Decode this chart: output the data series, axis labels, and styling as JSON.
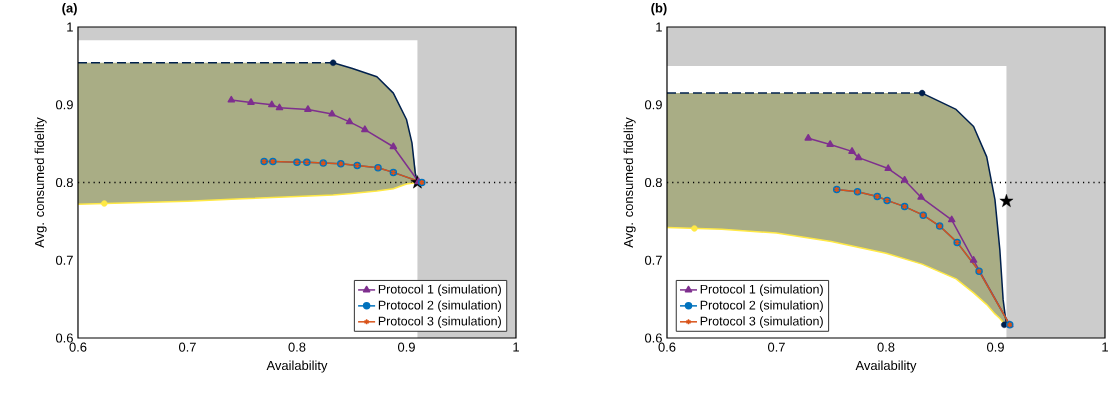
{
  "chart_data": [
    {
      "type": "line",
      "title": "(a)",
      "xlabel": "Availability",
      "ylabel": "Avg. consumed fidelity",
      "xlim": [
        0.6,
        1
      ],
      "ylim": [
        0.6,
        1
      ],
      "xticks": [
        0.6,
        0.7,
        0.8,
        0.9,
        1
      ],
      "yticks": [
        0.6,
        0.7,
        0.8,
        0.9,
        1
      ],
      "grid": false,
      "legend": "bottom right",
      "ref_lines": [
        {
          "axis": "y",
          "value": 0.8,
          "color": "#000000",
          "line_style": "dotted"
        }
      ],
      "bands": [
        {
          "axis": "x",
          "from": 0.91,
          "to": 1,
          "color": "#cccccc"
        },
        {
          "axis": "y",
          "from": 0.983,
          "to": 1,
          "color": "#cccccc"
        }
      ],
      "series": [
        {
          "color": "#ffe945",
          "marker": "none",
          "x": [
            0.6,
            0.65,
            0.7,
            0.75,
            0.8,
            0.833,
            0.85,
            0.873,
            0.888,
            0.9,
            0.905,
            0.91
          ],
          "values": [
            0.772,
            0.774,
            0.776,
            0.779,
            0.782,
            0.784,
            0.786,
            0.789,
            0.792,
            0.798,
            0.799,
            0.8
          ],
          "lower": [
            0.772,
            0.774,
            0.776,
            0.779,
            0.782,
            0.784,
            0.786,
            0.789,
            0.792,
            0.798,
            0.799,
            0.8
          ],
          "upper": [
            0.954,
            0.954,
            0.954,
            0.954,
            0.954,
            0.954,
            0.947,
            0.936,
            0.915,
            0.881,
            0.851,
            0.8
          ]
        },
        {
          "color": "#00204d",
          "line_style": "dashed",
          "marker": "none",
          "x": [
            0.6,
            0.833
          ],
          "values": [
            0.954,
            0.954
          ]
        },
        {
          "color": "#00204d",
          "marker": "none",
          "x": [
            0.833,
            0.85,
            0.873,
            0.888,
            0.9,
            0.905,
            0.908,
            0.91
          ],
          "values": [
            0.954,
            0.947,
            0.936,
            0.915,
            0.881,
            0.851,
            0.812,
            0.8
          ]
        },
        {
          "type": "scatter",
          "color": "#00204d",
          "marker": "circle",
          "x": [
            0.833
          ],
          "values": [
            0.954
          ]
        },
        {
          "type": "scatter",
          "color": "#ffe945",
          "marker": "circle",
          "x": [
            0.624
          ],
          "values": [
            0.773
          ]
        },
        {
          "type": "scatter",
          "color": "#000000",
          "marker": "star",
          "x": [
            0.91
          ],
          "values": [
            0.8
          ]
        },
        {
          "name": "Protocol 1 (simulation)",
          "color": "#7e2f8e",
          "marker": "triangle",
          "x": [
            0.74,
            0.758,
            0.777,
            0.784,
            0.81,
            0.832,
            0.848,
            0.862,
            0.888,
            0.911
          ],
          "values": [
            0.906,
            0.903,
            0.9,
            0.896,
            0.894,
            0.888,
            0.878,
            0.868,
            0.846,
            0.801
          ]
        },
        {
          "name": "Protocol 2 (simulation)",
          "color": "#0072bd",
          "marker": "circle",
          "x": [
            0.77,
            0.778,
            0.8,
            0.809,
            0.824,
            0.84,
            0.855,
            0.874,
            0.888,
            0.914
          ],
          "values": [
            0.827,
            0.827,
            0.826,
            0.826,
            0.825,
            0.824,
            0.822,
            0.819,
            0.813,
            0.8
          ]
        },
        {
          "name": "Protocol 3 (simulation)",
          "color": "#d95319",
          "marker": "cross",
          "x": [
            0.77,
            0.778,
            0.8,
            0.809,
            0.824,
            0.84,
            0.855,
            0.874,
            0.888,
            0.914
          ],
          "values": [
            0.827,
            0.827,
            0.826,
            0.826,
            0.825,
            0.824,
            0.822,
            0.819,
            0.813,
            0.8
          ]
        }
      ]
    },
    {
      "type": "line",
      "title": "(b)",
      "xlabel": "Availability",
      "ylabel": "Avg. consumed fidelity",
      "xlim": [
        0.6,
        1
      ],
      "ylim": [
        0.6,
        1
      ],
      "xticks": [
        0.6,
        0.7,
        0.8,
        0.9,
        1
      ],
      "yticks": [
        0.6,
        0.7,
        0.8,
        0.9,
        1
      ],
      "grid": false,
      "legend": "bottom left",
      "ref_lines": [
        {
          "axis": "y",
          "value": 0.8,
          "color": "#000000",
          "line_style": "dotted"
        }
      ],
      "bands": [
        {
          "axis": "x",
          "from": 0.91,
          "to": 1,
          "color": "#cccccc"
        },
        {
          "axis": "y",
          "from": 0.95,
          "to": 1,
          "color": "#cccccc"
        }
      ],
      "series": [
        {
          "color": "#ffe945",
          "marker": "none",
          "x": [
            0.6,
            0.65,
            0.7,
            0.75,
            0.8,
            0.833,
            0.864,
            0.88,
            0.892,
            0.8995,
            0.904,
            0.907,
            0.91
          ],
          "values": [
            0.742,
            0.74,
            0.735,
            0.724,
            0.709,
            0.695,
            0.676,
            0.658,
            0.643,
            0.631,
            0.625,
            0.62,
            0.617
          ],
          "lower": [
            0.742,
            0.74,
            0.735,
            0.724,
            0.709,
            0.695,
            0.676,
            0.658,
            0.643,
            0.631,
            0.625,
            0.62,
            0.617
          ],
          "upper": [
            0.915,
            0.915,
            0.915,
            0.915,
            0.915,
            0.915,
            0.894,
            0.872,
            0.833,
            0.778,
            0.713,
            0.649,
            0.617
          ]
        },
        {
          "color": "#00204d",
          "line_style": "dashed",
          "marker": "none",
          "x": [
            0.6,
            0.833
          ],
          "values": [
            0.915,
            0.915
          ]
        },
        {
          "color": "#00204d",
          "marker": "none",
          "x": [
            0.833,
            0.864,
            0.88,
            0.892,
            0.8995,
            0.904,
            0.907,
            0.91
          ],
          "values": [
            0.915,
            0.894,
            0.872,
            0.833,
            0.778,
            0.713,
            0.649,
            0.617
          ]
        },
        {
          "type": "scatter",
          "color": "#00204d",
          "marker": "circle",
          "x": [
            0.833,
            0.908
          ],
          "values": [
            0.915,
            0.617
          ]
        },
        {
          "type": "scatter",
          "color": "#ffe945",
          "marker": "circle",
          "x": [
            0.625
          ],
          "values": [
            0.741
          ]
        },
        {
          "type": "scatter",
          "color": "#000000",
          "marker": "star",
          "x": [
            0.91
          ],
          "values": [
            0.776
          ]
        },
        {
          "name": "Protocol 1 (simulation)",
          "color": "#7e2f8e",
          "marker": "triangle",
          "x": [
            0.729,
            0.749,
            0.769,
            0.775,
            0.802,
            0.817,
            0.832,
            0.86,
            0.88,
            0.913
          ],
          "values": [
            0.857,
            0.849,
            0.84,
            0.832,
            0.818,
            0.803,
            0.781,
            0.752,
            0.7,
            0.617
          ]
        },
        {
          "name": "Protocol 2 (simulation)",
          "color": "#0072bd",
          "marker": "circle",
          "x": [
            0.755,
            0.774,
            0.792,
            0.801,
            0.817,
            0.834,
            0.849,
            0.865,
            0.885,
            0.913
          ],
          "values": [
            0.791,
            0.788,
            0.782,
            0.777,
            0.769,
            0.758,
            0.744,
            0.723,
            0.686,
            0.617
          ]
        },
        {
          "name": "Protocol 3 (simulation)",
          "color": "#d95319",
          "marker": "cross",
          "x": [
            0.755,
            0.774,
            0.792,
            0.801,
            0.817,
            0.834,
            0.849,
            0.865,
            0.885,
            0.913
          ],
          "values": [
            0.791,
            0.788,
            0.782,
            0.777,
            0.769,
            0.758,
            0.744,
            0.723,
            0.686,
            0.617
          ]
        }
      ]
    }
  ]
}
